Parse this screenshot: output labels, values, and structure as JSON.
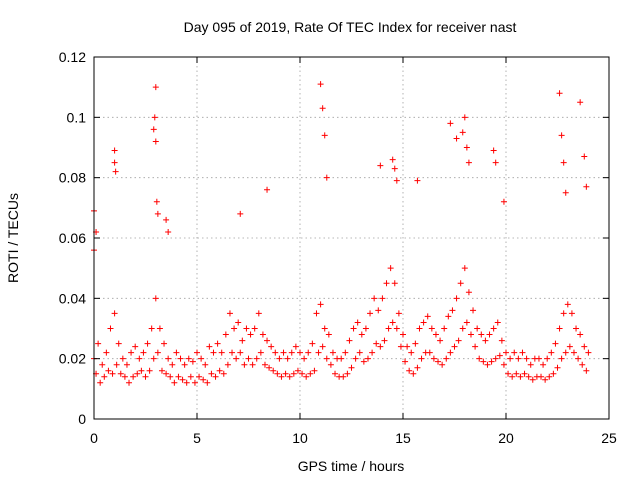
{
  "chart_data": {
    "type": "scatter",
    "title": "Day 095 of 2019, Rate Of TEC Index for receiver nast",
    "xlabel": "GPS time / hours",
    "ylabel": "ROTI / TECUs",
    "xlim": [
      0,
      25
    ],
    "ylim": [
      0,
      0.12
    ],
    "xticks": [
      0,
      5,
      10,
      15,
      20,
      25
    ],
    "xtick_labels": [
      "0",
      "5",
      "10",
      "15",
      "20",
      "25"
    ],
    "yticks": [
      0,
      0.02,
      0.04,
      0.06,
      0.08,
      0.1,
      0.12
    ],
    "ytick_labels": [
      "0",
      "0.02",
      "0.04",
      "0.06",
      "0.08",
      "0.1",
      "0.12"
    ],
    "grid": true,
    "marker": "plus",
    "color": "#ff0000",
    "series": [
      {
        "x": [
          0.0,
          0.2,
          0.4,
          0.6,
          0.8,
          1.0,
          1.2,
          1.4,
          1.6,
          1.8,
          2.0,
          2.2,
          2.4,
          2.6,
          2.8,
          3.0,
          3.2,
          3.4,
          3.6,
          3.8,
          4.0,
          4.2,
          4.4,
          4.6,
          4.8,
          5.0,
          5.2,
          5.4,
          5.6,
          5.8,
          6.0,
          6.2,
          6.4,
          6.6,
          6.8,
          7.0,
          7.2,
          7.4,
          7.6,
          7.8,
          8.0,
          8.2,
          8.4,
          8.6,
          8.8,
          9.0,
          9.2,
          9.4,
          9.6,
          9.8,
          10.0,
          10.2,
          10.4,
          10.6,
          10.8,
          11.0,
          11.2,
          11.4,
          11.6,
          11.8,
          12.0,
          12.2,
          12.4,
          12.6,
          12.8,
          13.0,
          13.2,
          13.4,
          13.6,
          13.8,
          14.0,
          14.2,
          14.4,
          14.6,
          14.8,
          15.0,
          15.2,
          15.4,
          15.6,
          15.8,
          16.0,
          16.2,
          16.4,
          16.6,
          16.8,
          17.0,
          17.2,
          17.4,
          17.6,
          17.8,
          18.0,
          18.2,
          18.4,
          18.6,
          18.8,
          19.0,
          19.2,
          19.4,
          19.6,
          19.8,
          20.0,
          20.2,
          20.4,
          20.6,
          20.8,
          21.0,
          21.2,
          21.4,
          21.6,
          21.8,
          22.0,
          22.2,
          22.4,
          22.6,
          22.8,
          23.0,
          23.2,
          23.4,
          23.6,
          23.8,
          24.0,
          0.1,
          0.3,
          0.5,
          0.7,
          0.9,
          1.1,
          1.3,
          1.5,
          1.7,
          1.9,
          2.1,
          2.3,
          2.5,
          2.7,
          2.9,
          3.1,
          3.3,
          3.5,
          3.7,
          3.9,
          4.1,
          4.3,
          4.5,
          4.7,
          4.9,
          5.1,
          5.3,
          5.5,
          5.7,
          5.9,
          6.1,
          6.3,
          6.5,
          6.7,
          6.9,
          7.1,
          7.3,
          7.5,
          7.7,
          7.9,
          8.1,
          8.3,
          8.5,
          8.7,
          8.9,
          9.1,
          9.3,
          9.5,
          9.7,
          9.9,
          10.1,
          10.3,
          10.5,
          10.7,
          10.9,
          11.1,
          11.3,
          11.5,
          11.7,
          11.9,
          12.1,
          12.3,
          12.5,
          12.7,
          12.9,
          13.1,
          13.3,
          13.5,
          13.7,
          13.9,
          14.1,
          14.3,
          14.5,
          14.7,
          14.9,
          15.1,
          15.3,
          15.5,
          15.7,
          15.9,
          16.1,
          16.3,
          16.5,
          16.7,
          16.9,
          17.1,
          17.3,
          17.5,
          17.7,
          17.9,
          18.1,
          18.3,
          18.5,
          18.7,
          18.9,
          19.1,
          19.3,
          19.5,
          19.7,
          19.9,
          20.1,
          20.3,
          20.5,
          20.7,
          20.9,
          21.1,
          21.3,
          21.5,
          21.7,
          21.9,
          22.1,
          22.3,
          22.5,
          22.7,
          22.9,
          23.1,
          23.3,
          23.5,
          23.7,
          23.9,
          0.0,
          0.1,
          0.0,
          1.0,
          1.0,
          1.05,
          2.9,
          2.95,
          3.0,
          3.0,
          3.05,
          3.1,
          3.5,
          3.6,
          7.1,
          8.4,
          11.0,
          11.1,
          11.2,
          11.3,
          13.9,
          14.5,
          14.6,
          14.7,
          15.7,
          17.3,
          17.6,
          17.9,
          18.0,
          18.1,
          18.2,
          19.4,
          19.5,
          19.9,
          22.6,
          22.7,
          22.8,
          22.9,
          23.6,
          23.8,
          23.9
        ],
        "y": [
          0.02,
          0.025,
          0.018,
          0.022,
          0.03,
          0.035,
          0.025,
          0.02,
          0.018,
          0.022,
          0.024,
          0.02,
          0.022,
          0.025,
          0.03,
          0.04,
          0.03,
          0.025,
          0.02,
          0.018,
          0.022,
          0.02,
          0.018,
          0.02,
          0.019,
          0.022,
          0.02,
          0.018,
          0.024,
          0.022,
          0.025,
          0.022,
          0.028,
          0.035,
          0.03,
          0.032,
          0.026,
          0.03,
          0.028,
          0.03,
          0.035,
          0.028,
          0.026,
          0.024,
          0.022,
          0.02,
          0.022,
          0.02,
          0.022,
          0.024,
          0.022,
          0.02,
          0.022,
          0.025,
          0.035,
          0.038,
          0.03,
          0.028,
          0.022,
          0.02,
          0.02,
          0.022,
          0.026,
          0.03,
          0.032,
          0.028,
          0.03,
          0.035,
          0.04,
          0.036,
          0.04,
          0.045,
          0.05,
          0.045,
          0.035,
          0.028,
          0.024,
          0.022,
          0.025,
          0.03,
          0.032,
          0.034,
          0.03,
          0.028,
          0.026,
          0.03,
          0.034,
          0.036,
          0.04,
          0.045,
          0.05,
          0.042,
          0.036,
          0.03,
          0.028,
          0.026,
          0.028,
          0.03,
          0.032,
          0.026,
          0.022,
          0.02,
          0.022,
          0.02,
          0.022,
          0.02,
          0.018,
          0.02,
          0.02,
          0.018,
          0.02,
          0.022,
          0.025,
          0.03,
          0.035,
          0.038,
          0.035,
          0.03,
          0.028,
          0.024,
          0.022,
          0.015,
          0.012,
          0.014,
          0.016,
          0.015,
          0.018,
          0.015,
          0.014,
          0.012,
          0.014,
          0.015,
          0.016,
          0.014,
          0.016,
          0.02,
          0.022,
          0.016,
          0.015,
          0.014,
          0.012,
          0.014,
          0.013,
          0.012,
          0.014,
          0.012,
          0.014,
          0.013,
          0.012,
          0.015,
          0.014,
          0.016,
          0.015,
          0.018,
          0.022,
          0.02,
          0.022,
          0.018,
          0.02,
          0.018,
          0.02,
          0.022,
          0.018,
          0.017,
          0.016,
          0.015,
          0.014,
          0.015,
          0.014,
          0.015,
          0.016,
          0.015,
          0.014,
          0.015,
          0.016,
          0.022,
          0.024,
          0.02,
          0.018,
          0.015,
          0.014,
          0.014,
          0.015,
          0.017,
          0.02,
          0.022,
          0.019,
          0.02,
          0.022,
          0.025,
          0.024,
          0.026,
          0.03,
          0.032,
          0.03,
          0.024,
          0.019,
          0.016,
          0.015,
          0.017,
          0.02,
          0.022,
          0.022,
          0.02,
          0.019,
          0.018,
          0.02,
          0.022,
          0.024,
          0.026,
          0.03,
          0.032,
          0.028,
          0.024,
          0.02,
          0.019,
          0.018,
          0.019,
          0.02,
          0.021,
          0.018,
          0.015,
          0.014,
          0.015,
          0.014,
          0.015,
          0.014,
          0.013,
          0.014,
          0.014,
          0.013,
          0.014,
          0.015,
          0.017,
          0.02,
          0.022,
          0.024,
          0.022,
          0.02,
          0.018,
          0.016,
          0.069,
          0.062,
          0.056,
          0.089,
          0.085,
          0.082,
          0.096,
          0.1,
          0.11,
          0.092,
          0.072,
          0.068,
          0.066,
          0.062,
          0.068,
          0.076,
          0.111,
          0.103,
          0.094,
          0.08,
          0.084,
          0.086,
          0.083,
          0.079,
          0.079,
          0.098,
          0.093,
          0.095,
          0.1,
          0.09,
          0.085,
          0.089,
          0.085,
          0.072,
          0.108,
          0.094,
          0.085,
          0.075,
          0.105,
          0.087,
          0.077
        ]
      }
    ]
  }
}
